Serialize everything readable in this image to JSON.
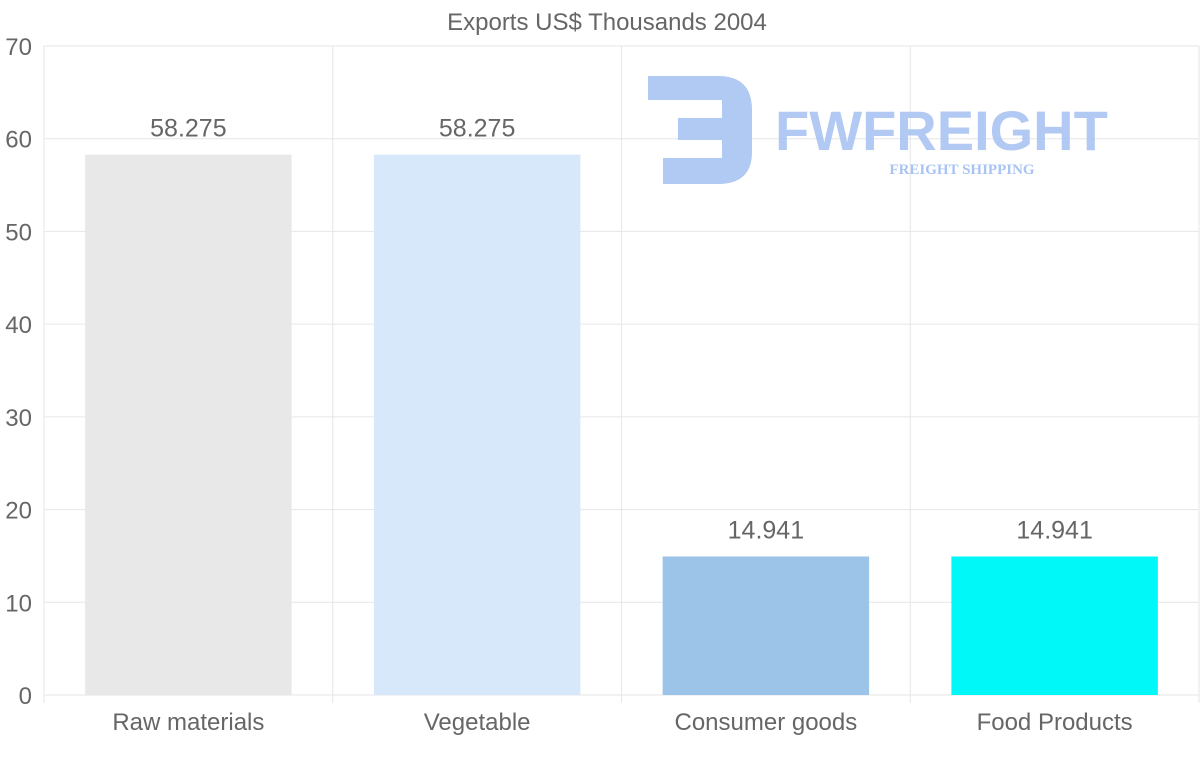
{
  "chart_data": {
    "type": "bar",
    "title": "Exports US$ Thousands 2004",
    "categories": [
      "Raw materials",
      "Vegetable",
      "Consumer goods",
      "Food Products"
    ],
    "values": [
      58.275,
      58.275,
      14.941,
      14.941
    ],
    "value_labels": [
      "58.275",
      "58.275",
      "14.941",
      "14.941"
    ],
    "colors": [
      "#e8e8e8",
      "#d6e8fa",
      "#9cc4e8",
      "#00f8f8"
    ],
    "ylim": [
      0,
      70
    ],
    "yticks": [
      0,
      10,
      20,
      30,
      40,
      50,
      60,
      70
    ],
    "xlabel": "",
    "ylabel": "",
    "grid": true,
    "legend": "none"
  },
  "watermark": {
    "brand": "FWFREIGHT",
    "tagline": "FREIGHT SHIPPING",
    "color": "#a9c4f2"
  }
}
